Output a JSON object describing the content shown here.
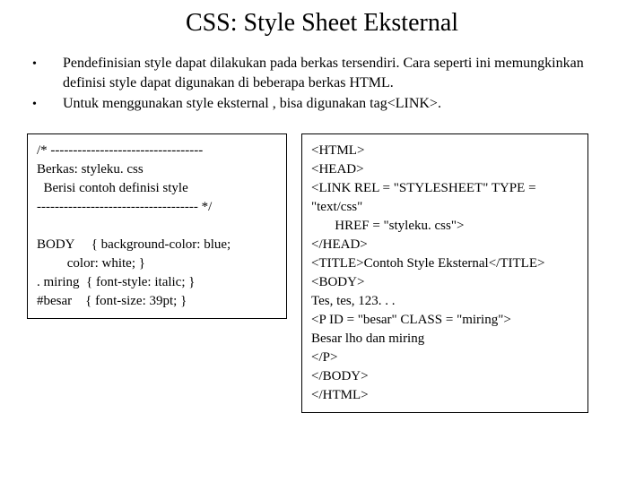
{
  "title": "CSS: Style Sheet Eksternal",
  "bullets": [
    "Pendefinisian style dapat dilakukan pada berkas tersendiri. Cara seperti ini memungkinkan definisi style dapat digunakan di beberapa berkas HTML.",
    "Untuk menggunakan style eksternal , bisa digunakan tag<LINK>."
  ],
  "left_box": "/* ----------------------------------\nBerkas: styleku. css\n  Berisi contoh definisi style\n------------------------------------ */\n\nBODY     { background-color: blue;\n         color: white; }\n. miring  { font-style: italic; }\n#besar    { font-size: 39pt; }",
  "right_box": "<HTML>\n<HEAD>\n<LINK REL = \"STYLESHEET\" TYPE = \"text/css\"\n       HREF = \"styleku. css\">\n</HEAD>\n<TITLE>Contoh Style Eksternal</TITLE>\n<BODY>\nTes, tes, 123. . .\n<P ID = \"besar\" CLASS = \"miring\">\nBesar lho dan miring\n</P>\n</BODY>\n</HTML>",
  "colors": {
    "background": "#ffffff",
    "text": "#000000",
    "border": "#000000"
  },
  "fonts": {
    "title_size": 28,
    "body_size": 16,
    "code_size": 15,
    "family": "Times New Roman"
  }
}
